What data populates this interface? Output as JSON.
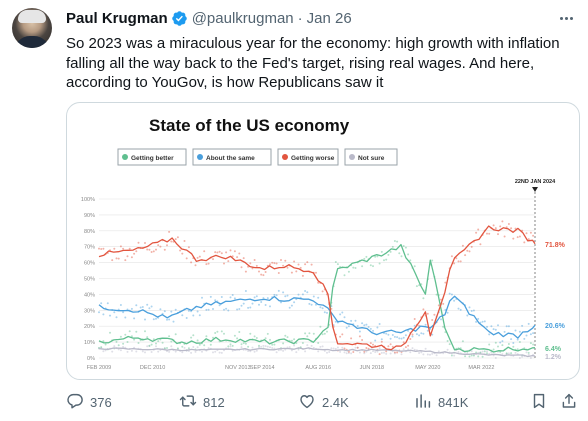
{
  "tweet": {
    "author_name": "Paul Krugman",
    "handle": "@paulkrugman",
    "separator": "·",
    "date": "Jan 26",
    "text_lines": [
      "So 2023 was a miraculous year for the economy: high growth with inflation",
      "falling all the way back to the Fed's target, rising real wages. And here,",
      "according to YouGov, is how Republicans saw it"
    ]
  },
  "stats": {
    "replies": "376",
    "reposts": "812",
    "likes": "2.4K",
    "views": "841K"
  },
  "icons": {
    "verified": "verified-badge-icon",
    "more": "more-options-icon",
    "reply": "reply-icon",
    "repost": "repost-icon",
    "like": "like-icon",
    "views": "views-icon",
    "bookmark": "bookmark-icon",
    "share": "share-icon"
  },
  "colors": {
    "getting_better": "#5fbf8f",
    "about_the_same": "#4a9fdc",
    "getting_worse": "#e2553f",
    "not_sure": "#b9b9c9",
    "verified_blue": "#1d9bf0"
  },
  "chart_data": {
    "type": "line",
    "title": "State of the US economy",
    "xlabel": "",
    "ylabel": "",
    "ylim": [
      0,
      100
    ],
    "yticks": [
      "0%",
      "10%",
      "20%",
      "30%",
      "40%",
      "50%",
      "60%",
      "70%",
      "80%",
      "90%",
      "100%"
    ],
    "xticks": [
      "FEB 2009",
      "DEC 2010",
      "NOV 2013",
      "SEP 2014",
      "AUG 2016",
      "JUN 2018",
      "MAY 2020",
      "MAR 2022"
    ],
    "xrange": [
      "2009-02",
      "2024-01"
    ],
    "marker_label": "22ND JAN 2024",
    "legend_placement": "top-left",
    "grid": true,
    "end_labels": [
      "71.8%",
      "20.6%",
      "6.4%",
      "1.2%"
    ],
    "series": [
      {
        "name": "Getting better",
        "color": "#5fbf8f",
        "x": [
          "2009-02",
          "2010-06",
          "2012-01",
          "2013-06",
          "2014-09",
          "2016-06",
          "2016-12",
          "2017-03",
          "2018-06",
          "2019-06",
          "2020-04",
          "2020-06",
          "2020-12",
          "2021-03",
          "2022-06",
          "2023-06",
          "2024-01"
        ],
        "values": [
          10,
          13,
          10,
          12,
          10,
          11,
          20,
          55,
          63,
          70,
          40,
          62,
          20,
          6,
          5,
          6,
          6.4
        ]
      },
      {
        "name": "About the same",
        "color": "#4a9fdc",
        "x": [
          "2009-02",
          "2010-06",
          "2011-06",
          "2012-06",
          "2013-06",
          "2014-09",
          "2015-06",
          "2016-06",
          "2016-12",
          "2017-03",
          "2018-06",
          "2019-06",
          "2020-04",
          "2020-06",
          "2020-12",
          "2021-03",
          "2022-06",
          "2023-06",
          "2024-01"
        ],
        "values": [
          32,
          30,
          25,
          32,
          35,
          38,
          37,
          37,
          30,
          25,
          16,
          16,
          20,
          18,
          28,
          40,
          16,
          14,
          20.6
        ]
      },
      {
        "name": "Getting worse",
        "color": "#e2553f",
        "x": [
          "2009-02",
          "2010-06",
          "2011-08",
          "2012-06",
          "2013-06",
          "2014-09",
          "2015-06",
          "2016-06",
          "2016-12",
          "2017-03",
          "2018-06",
          "2019-06",
          "2020-04",
          "2020-06",
          "2020-12",
          "2021-03",
          "2022-06",
          "2023-06",
          "2024-01"
        ],
        "values": [
          65,
          68,
          75,
          62,
          64,
          56,
          58,
          55,
          40,
          10,
          8,
          6,
          30,
          15,
          42,
          60,
          82,
          80,
          71.8
        ]
      },
      {
        "name": "Not sure",
        "color": "#b9b9c9",
        "x": [
          "2009-02",
          "2012-06",
          "2016-06",
          "2017-03",
          "2018-06",
          "2020-06",
          "2022-06",
          "2024-01"
        ],
        "values": [
          6,
          5,
          6,
          5,
          5,
          4,
          2,
          1.2
        ]
      }
    ]
  }
}
